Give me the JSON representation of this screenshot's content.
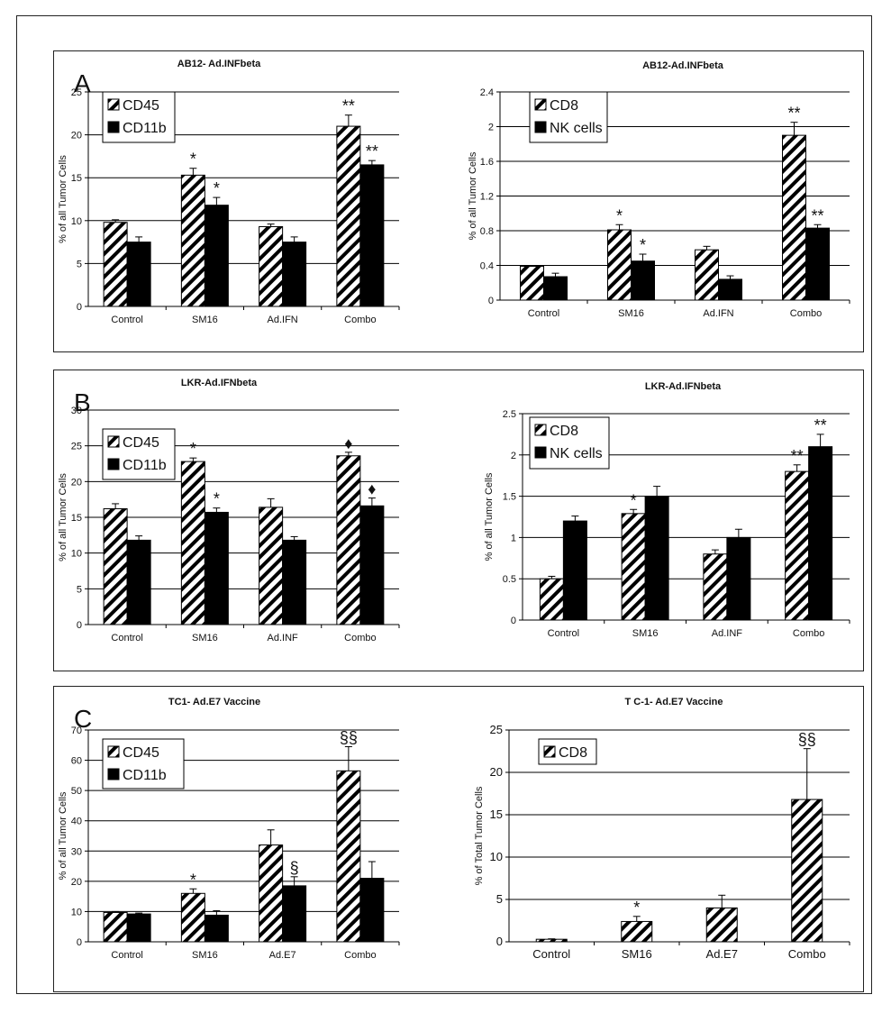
{
  "panels": [
    {
      "letter": "A"
    },
    {
      "letter": "B"
    },
    {
      "letter": "C"
    }
  ],
  "colors": {
    "hatch_series": "#000000",
    "solid_series": "#000000",
    "background": "#ffffff"
  },
  "chart_data": [
    {
      "type": "bar",
      "panel": "A",
      "title": "AB12- Ad.INFbeta",
      "xlabel": "",
      "ylabel": "% of all Tumor Cells",
      "categories": [
        "Control",
        "SM16",
        "Ad.IFN",
        "Combo"
      ],
      "ylim": [
        0,
        25
      ],
      "yticks": [
        0,
        5,
        10,
        15,
        20,
        25
      ],
      "legend": "top-left",
      "grid": true,
      "series": [
        {
          "name": "CD45",
          "pattern": "hatch",
          "values": [
            9.8,
            15.3,
            9.3,
            21.0
          ],
          "errors": [
            0.3,
            0.8,
            0.3,
            1.3
          ],
          "markers": [
            "",
            "*",
            "",
            "**"
          ]
        },
        {
          "name": "CD11b",
          "pattern": "solid",
          "values": [
            7.5,
            11.8,
            7.5,
            16.5
          ],
          "errors": [
            0.6,
            0.9,
            0.6,
            0.5
          ],
          "markers": [
            "",
            "*",
            "",
            "**"
          ]
        }
      ]
    },
    {
      "type": "bar",
      "panel": "A",
      "title": "AB12-Ad.INFbeta",
      "xlabel": "",
      "ylabel": "% of all Tumor Cells",
      "categories": [
        "Control",
        "SM16",
        "Ad.IFN",
        "Combo"
      ],
      "ylim": [
        0,
        2.4
      ],
      "yticks": [
        0,
        0.4,
        0.8,
        1.2,
        1.6,
        2,
        2.4
      ],
      "legend": "top-left",
      "grid": true,
      "series": [
        {
          "name": "CD8",
          "pattern": "hatch",
          "values": [
            0.39,
            0.81,
            0.58,
            1.9
          ],
          "errors": [
            0.0,
            0.06,
            0.04,
            0.15
          ],
          "markers": [
            "",
            "*",
            "",
            "**"
          ]
        },
        {
          "name": "NK cells",
          "pattern": "solid",
          "values": [
            0.27,
            0.45,
            0.24,
            0.83
          ],
          "errors": [
            0.04,
            0.08,
            0.04,
            0.04
          ],
          "markers": [
            "",
            "*",
            "",
            "**"
          ]
        }
      ]
    },
    {
      "type": "bar",
      "panel": "B",
      "title": "LKR-Ad.IFNbeta",
      "xlabel": "",
      "ylabel": "% of all Tumor Cells",
      "categories": [
        "Control",
        "SM16",
        "Ad.INF",
        "Combo"
      ],
      "ylim": [
        0,
        30
      ],
      "yticks": [
        0,
        5,
        10,
        15,
        20,
        25,
        30
      ],
      "legend": "top-left",
      "grid": true,
      "series": [
        {
          "name": "CD45",
          "pattern": "hatch",
          "values": [
            16.2,
            22.8,
            16.4,
            23.6
          ],
          "errors": [
            0.7,
            0.5,
            1.2,
            0.5
          ],
          "markers": [
            "",
            "*",
            "",
            "♦"
          ]
        },
        {
          "name": "CD11b",
          "pattern": "solid",
          "values": [
            11.8,
            15.7,
            11.8,
            16.6
          ],
          "errors": [
            0.6,
            0.6,
            0.5,
            1.1
          ],
          "markers": [
            "",
            "*",
            "",
            "♦"
          ]
        }
      ]
    },
    {
      "type": "bar",
      "panel": "B",
      "title": "LKR-Ad.IFNbeta",
      "xlabel": "",
      "ylabel": "% of all Tumor Cells",
      "categories": [
        "Control",
        "SM16",
        "Ad.INF",
        "Combo"
      ],
      "ylim": [
        0,
        2.5
      ],
      "yticks": [
        0,
        0.5,
        1,
        1.5,
        2,
        2.5
      ],
      "legend": "top-left",
      "grid": true,
      "series": [
        {
          "name": "CD8",
          "pattern": "hatch",
          "values": [
            0.5,
            1.29,
            0.8,
            1.8
          ],
          "errors": [
            0.03,
            0.05,
            0.05,
            0.08
          ],
          "markers": [
            "",
            "*",
            "",
            "**"
          ]
        },
        {
          "name": "NK cells",
          "pattern": "solid",
          "values": [
            1.2,
            1.5,
            1.0,
            2.1
          ],
          "errors": [
            0.06,
            0.12,
            0.1,
            0.15
          ],
          "markers": [
            "",
            "",
            "",
            "**"
          ]
        }
      ]
    },
    {
      "type": "bar",
      "panel": "C",
      "title": "TC1- Ad.E7 Vaccine",
      "xlabel": "",
      "ylabel": "% of all Tumor Cells",
      "categories": [
        "Control",
        "SM16",
        "Ad.E7",
        "Combo"
      ],
      "ylim": [
        0,
        70
      ],
      "yticks": [
        0,
        10,
        20,
        30,
        40,
        50,
        60,
        70
      ],
      "legend": "top-left",
      "grid": true,
      "series": [
        {
          "name": "CD45",
          "pattern": "hatch",
          "values": [
            9.7,
            16.0,
            32.0,
            56.5
          ],
          "errors": [
            0.3,
            1.5,
            5.0,
            8.0
          ],
          "markers": [
            "",
            "*",
            "",
            "§§"
          ]
        },
        {
          "name": "CD11b",
          "pattern": "solid",
          "values": [
            9.2,
            8.8,
            18.5,
            21.0
          ],
          "errors": [
            0.3,
            1.5,
            3.0,
            5.5
          ],
          "markers": [
            "",
            "",
            "§",
            ""
          ]
        }
      ]
    },
    {
      "type": "bar",
      "panel": "C",
      "title": "T C-1- Ad.E7 Vaccine",
      "xlabel": "",
      "ylabel": "% of Total Tumor Cells",
      "categories": [
        "Control",
        "SM16",
        "Ad.E7",
        "Combo"
      ],
      "ylim": [
        0,
        25
      ],
      "yticks": [
        0,
        5,
        10,
        15,
        20,
        25
      ],
      "legend": "top-left",
      "grid": true,
      "series": [
        {
          "name": "CD8",
          "pattern": "hatch",
          "values": [
            0.3,
            2.4,
            4.0,
            16.8
          ],
          "errors": [
            0.05,
            0.6,
            1.5,
            6.0
          ],
          "markers": [
            "",
            "*",
            "",
            "§§"
          ]
        }
      ]
    }
  ]
}
